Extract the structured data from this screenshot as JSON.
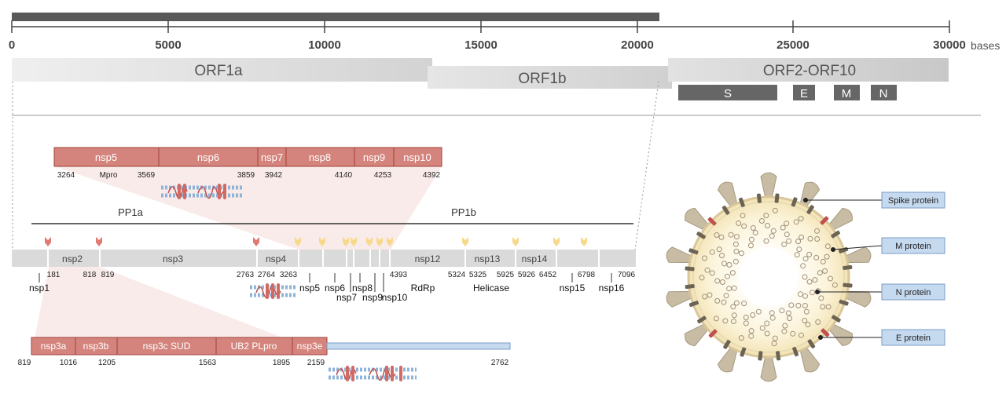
{
  "genome": {
    "tick_labels": [
      "0",
      "5000",
      "10000",
      "15000",
      "20000",
      "25000",
      "30000"
    ],
    "unit": "bases",
    "orfs": [
      "ORF1a",
      "ORF1b",
      "ORF2-ORF10"
    ],
    "structural_genes": [
      "S",
      "E",
      "M",
      "N"
    ]
  },
  "inset_top": {
    "segments": [
      "nsp5",
      "nsp6",
      "nsp7",
      "nsp8",
      "nsp9",
      "nsp10"
    ],
    "positions": [
      "3264",
      "3569",
      "3859",
      "3942",
      "4140",
      "4253",
      "4392"
    ],
    "protease_label": "Mpro"
  },
  "polyprotein": {
    "pp1a_label": "PP1a",
    "pp1b_label": "PP1b",
    "segments": [
      "nsp2",
      "nsp3",
      "nsp4",
      "nsp12",
      "nsp13",
      "nsp14"
    ],
    "positions": [
      "181",
      "818",
      "819",
      "2763",
      "2764",
      "3263",
      "4393",
      "5324",
      "5325",
      "5925",
      "5926",
      "6452",
      "6798",
      "7096"
    ],
    "protein_labels": [
      "nsp1",
      "nsp5",
      "nsp6",
      "nsp7",
      "nsp8",
      "nsp9",
      "nsp10",
      "RdRp",
      "Helicase",
      "nsp15",
      "nsp16"
    ]
  },
  "inset_bottom": {
    "segments": [
      "nsp3a",
      "nsp3b",
      "nsp3c SUD",
      "UB2 PLpro",
      "nsp3e"
    ],
    "positions": [
      "819",
      "1016",
      "1205",
      "1563",
      "1895",
      "2159",
      "2762"
    ]
  },
  "virion": {
    "labels": [
      "Spike protein",
      "M protein",
      "N protein",
      "E protein"
    ]
  },
  "colors": {
    "nsp_red": "#d4847c",
    "nsp_red_border": "#a0403a",
    "bar_grey": "#dadada",
    "dark_bar": "#595959",
    "label_box": "#c5d9ef",
    "cleavage_red": "#e07a72",
    "cleavage_yellow": "#f7d98c"
  }
}
